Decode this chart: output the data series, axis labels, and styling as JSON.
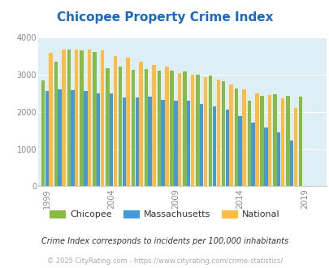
{
  "title": "Chicopee Property Crime Index",
  "title_color": "#1a6abf",
  "years": [
    1999,
    2000,
    2001,
    2002,
    2003,
    2004,
    2005,
    2006,
    2007,
    2008,
    2009,
    2010,
    2011,
    2012,
    2013,
    2014,
    2015,
    2016,
    2017,
    2018,
    2019,
    2020
  ],
  "chicopee": [
    2850,
    3360,
    3680,
    3650,
    3620,
    3180,
    3210,
    3140,
    3150,
    3110,
    3100,
    3090,
    3000,
    2980,
    2820,
    2620,
    2310,
    2430,
    2470,
    2440,
    2400,
    null
  ],
  "massachusetts": [
    2560,
    2610,
    2580,
    2560,
    2490,
    2490,
    2380,
    2380,
    2400,
    2320,
    2310,
    2310,
    2210,
    2155,
    2060,
    1875,
    1720,
    1580,
    1460,
    1220,
    null,
    null
  ],
  "national": [
    3600,
    3670,
    3680,
    3680,
    3650,
    3510,
    3450,
    3340,
    3270,
    3220,
    3040,
    2990,
    2940,
    2860,
    2730,
    2600,
    2490,
    2450,
    2370,
    2100,
    null,
    null
  ],
  "chicopee_color": "#88bb44",
  "massachusetts_color": "#4499dd",
  "national_color": "#ffbb44",
  "plot_bg_color": "#ddeef5",
  "ylim": [
    0,
    4000
  ],
  "yticks": [
    0,
    1000,
    2000,
    3000,
    4000
  ],
  "xlabel_ticks": [
    1999,
    2004,
    2009,
    2014,
    2019
  ],
  "footer_note": "Crime Index corresponds to incidents per 100,000 inhabitants",
  "footer_credit": "© 2025 CityRating.com - https://www.cityrating.com/crime-statistics/",
  "legend_labels": [
    "Chicopee",
    "Massachusetts",
    "National"
  ],
  "title_fontsize": 11,
  "tick_fontsize": 7,
  "legend_fontsize": 8,
  "footer_fontsize": 7,
  "credit_fontsize": 6
}
